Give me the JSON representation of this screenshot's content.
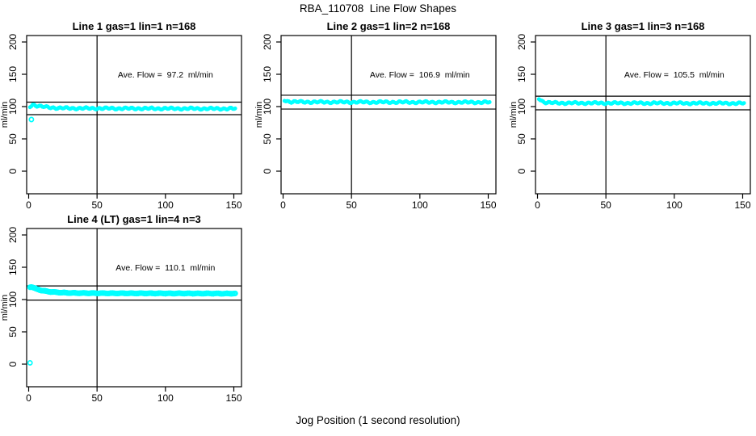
{
  "figure": {
    "title": "RBA_110708  Line Flow Shapes",
    "x_axis_label": "Jog Position (1 second resolution)",
    "background_color": "#FFFFFF",
    "point_color": "#00FFFF",
    "line_color": "#000000"
  },
  "chart_data": [
    {
      "type": "scatter",
      "title": "Line 1 gas=1 lin=1 n=168",
      "ylabel": "ml/min",
      "annotation": "Ave. Flow =  97.2  ml/min",
      "ave_flow_ml_min": 97.2,
      "n_runs": 168,
      "x_ticks": [
        0,
        50,
        100,
        150
      ],
      "y_ticks": [
        0,
        50,
        100,
        150,
        200
      ],
      "xlim": [
        -6,
        157
      ],
      "ylim": [
        -25,
        215
      ],
      "vline_x": 50,
      "hlines": [
        106.9,
        87.5
      ],
      "points": [
        [
          1,
          100.3
        ],
        [
          3,
          102.9
        ],
        [
          4,
          102.6
        ],
        [
          5,
          101.9
        ],
        [
          6,
          101.3
        ],
        [
          7,
          100.8
        ],
        [
          8,
          100.4
        ],
        [
          9,
          100.1
        ],
        [
          10,
          99.8
        ],
        [
          12,
          99.3
        ],
        [
          14,
          98.9
        ],
        [
          16,
          98.6
        ],
        [
          18,
          98.3
        ],
        [
          20,
          98.0
        ],
        [
          22,
          97.8
        ],
        [
          24,
          97.7
        ],
        [
          26,
          97.6
        ],
        [
          28,
          97.5
        ],
        [
          30,
          97.4
        ],
        [
          34,
          97.3
        ],
        [
          38,
          97.3
        ],
        [
          42,
          97.2
        ],
        [
          46,
          97.2
        ],
        [
          50,
          97.2
        ],
        [
          55,
          97.1
        ],
        [
          60,
          97.2
        ],
        [
          65,
          97.0
        ],
        [
          70,
          97.1
        ],
        [
          75,
          97.0
        ],
        [
          80,
          97.1
        ],
        [
          85,
          96.9
        ],
        [
          90,
          97.0
        ],
        [
          95,
          96.9
        ],
        [
          100,
          97.0
        ],
        [
          105,
          96.8
        ],
        [
          110,
          96.9
        ],
        [
          115,
          96.8
        ],
        [
          120,
          96.9
        ],
        [
          125,
          96.8
        ],
        [
          130,
          96.8
        ],
        [
          135,
          96.7
        ],
        [
          140,
          96.8
        ],
        [
          145,
          96.7
        ],
        [
          148,
          96.8
        ],
        [
          151,
          96.7
        ]
      ],
      "outliers": [
        [
          2,
          80
        ]
      ]
    },
    {
      "type": "scatter",
      "title": "Line 2 gas=1 lin=2 n=168",
      "ylabel": "ml/min",
      "annotation": "Ave. Flow =  106.9  ml/min",
      "ave_flow_ml_min": 106.9,
      "n_runs": 168,
      "x_ticks": [
        0,
        50,
        100,
        150
      ],
      "y_ticks": [
        0,
        50,
        100,
        150,
        200
      ],
      "xlim": [
        -6,
        157
      ],
      "ylim": [
        -25,
        215
      ],
      "vline_x": 50,
      "hlines": [
        117.6,
        96.2
      ],
      "points": [
        [
          1,
          110.2
        ],
        [
          2,
          109.2
        ],
        [
          3,
          108.4
        ],
        [
          4,
          107.9
        ],
        [
          5,
          107.6
        ],
        [
          6,
          107.4
        ],
        [
          8,
          107.3
        ],
        [
          10,
          107.2
        ],
        [
          12,
          107.2
        ],
        [
          14,
          107.1
        ],
        [
          16,
          107.1
        ],
        [
          20,
          107.1
        ],
        [
          25,
          107.0
        ],
        [
          30,
          107.0
        ],
        [
          35,
          107.0
        ],
        [
          40,
          106.9
        ],
        [
          45,
          107.0
        ],
        [
          50,
          106.9
        ],
        [
          55,
          106.9
        ],
        [
          60,
          106.9
        ],
        [
          65,
          106.8
        ],
        [
          70,
          106.9
        ],
        [
          75,
          106.8
        ],
        [
          80,
          106.9
        ],
        [
          85,
          106.8
        ],
        [
          90,
          106.8
        ],
        [
          95,
          106.7
        ],
        [
          100,
          106.8
        ],
        [
          105,
          106.7
        ],
        [
          110,
          106.8
        ],
        [
          115,
          106.7
        ],
        [
          120,
          106.7
        ],
        [
          125,
          106.6
        ],
        [
          130,
          106.7
        ],
        [
          135,
          106.6
        ],
        [
          140,
          106.7
        ],
        [
          145,
          106.6
        ],
        [
          148,
          106.6
        ],
        [
          151,
          106.6
        ]
      ],
      "outliers": []
    },
    {
      "type": "scatter",
      "title": "Line 3 gas=1 lin=3 n=168",
      "ylabel": "ml/min",
      "annotation": "Ave. Flow =  105.5  ml/min",
      "ave_flow_ml_min": 105.5,
      "n_runs": 168,
      "x_ticks": [
        0,
        50,
        100,
        150
      ],
      "y_ticks": [
        0,
        50,
        100,
        150,
        200
      ],
      "xlim": [
        -6,
        157
      ],
      "ylim": [
        -25,
        215
      ],
      "vline_x": 50,
      "hlines": [
        116.1,
        95.0
      ],
      "points": [
        [
          1,
          112.8
        ],
        [
          2,
          110.8
        ],
        [
          3,
          109.0
        ],
        [
          4,
          107.8
        ],
        [
          5,
          107.0
        ],
        [
          6,
          106.5
        ],
        [
          7,
          106.2
        ],
        [
          8,
          106.0
        ],
        [
          10,
          105.8
        ],
        [
          12,
          105.7
        ],
        [
          14,
          105.6
        ],
        [
          16,
          105.6
        ],
        [
          20,
          105.5
        ],
        [
          25,
          105.5
        ],
        [
          30,
          105.4
        ],
        [
          35,
          105.5
        ],
        [
          40,
          105.4
        ],
        [
          45,
          105.4
        ],
        [
          50,
          105.4
        ],
        [
          55,
          105.3
        ],
        [
          60,
          105.4
        ],
        [
          65,
          105.3
        ],
        [
          70,
          105.3
        ],
        [
          75,
          105.3
        ],
        [
          80,
          105.2
        ],
        [
          85,
          105.3
        ],
        [
          90,
          105.2
        ],
        [
          95,
          105.3
        ],
        [
          100,
          105.2
        ],
        [
          105,
          105.2
        ],
        [
          110,
          105.1
        ],
        [
          115,
          105.2
        ],
        [
          120,
          105.1
        ],
        [
          125,
          105.2
        ],
        [
          130,
          105.1
        ],
        [
          135,
          105.1
        ],
        [
          140,
          105.0
        ],
        [
          145,
          105.1
        ],
        [
          148,
          105.0
        ],
        [
          151,
          105.1
        ]
      ],
      "outliers": []
    },
    {
      "type": "scatter",
      "title": "Line 4 (LT) gas=1 lin=4 n=3",
      "ylabel": "ml/min",
      "annotation": "Ave. Flow =  110.1  ml/min",
      "ave_flow_ml_min": 110.1,
      "n_runs": 3,
      "x_ticks": [
        0,
        50,
        100,
        150
      ],
      "y_ticks": [
        0,
        50,
        100,
        150,
        200
      ],
      "xlim": [
        -6,
        157
      ],
      "ylim": [
        -25,
        215
      ],
      "vline_x": 50,
      "hlines": [
        121.1,
        99.1
      ],
      "points": [
        [
          1,
          119.3
        ],
        [
          2,
          119.8
        ],
        [
          3,
          118.9
        ],
        [
          4,
          117.8
        ],
        [
          5,
          116.9
        ],
        [
          6,
          116.1
        ],
        [
          7,
          115.5
        ],
        [
          8,
          114.9
        ],
        [
          9,
          114.4
        ],
        [
          10,
          113.9
        ],
        [
          11,
          113.5
        ],
        [
          12,
          113.1
        ],
        [
          13,
          112.8
        ],
        [
          14,
          112.5
        ],
        [
          15,
          112.2
        ],
        [
          16,
          112.0
        ],
        [
          18,
          111.6
        ],
        [
          20,
          111.2
        ],
        [
          22,
          111.0
        ],
        [
          24,
          110.8
        ],
        [
          26,
          110.6
        ],
        [
          28,
          110.4
        ],
        [
          30,
          110.3
        ],
        [
          34,
          110.1
        ],
        [
          38,
          110.0
        ],
        [
          42,
          109.9
        ],
        [
          46,
          109.9
        ],
        [
          50,
          109.8
        ],
        [
          55,
          109.8
        ],
        [
          60,
          109.7
        ],
        [
          65,
          109.7
        ],
        [
          70,
          109.7
        ],
        [
          75,
          109.6
        ],
        [
          80,
          109.6
        ],
        [
          85,
          109.6
        ],
        [
          90,
          109.5
        ],
        [
          95,
          109.5
        ],
        [
          100,
          109.5
        ],
        [
          105,
          109.4
        ],
        [
          110,
          109.5
        ],
        [
          115,
          109.4
        ],
        [
          120,
          109.4
        ],
        [
          125,
          109.3
        ],
        [
          130,
          109.4
        ],
        [
          135,
          109.3
        ],
        [
          140,
          109.3
        ],
        [
          145,
          109.2
        ],
        [
          148,
          109.3
        ],
        [
          151,
          109.2
        ]
      ],
      "outliers": [
        [
          1,
          2
        ]
      ]
    }
  ]
}
